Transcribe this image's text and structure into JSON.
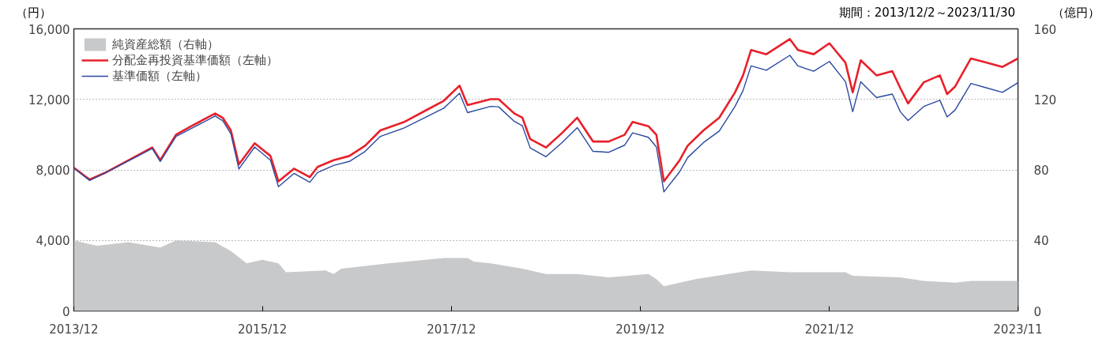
{
  "chart_data": {
    "type": "line",
    "ylabel": "（円）",
    "y2label": "（億円）",
    "annotations": [
      "期間：2013/12/2～2023/11/30"
    ],
    "xlim": [
      "2013-12-02",
      "2023-11-30"
    ],
    "xticks": [
      {
        "value": "2013-12-02",
        "label": "2013/12"
      },
      {
        "value": "2015-12-01",
        "label": "2015/12"
      },
      {
        "value": "2017-12-01",
        "label": "2017/12"
      },
      {
        "value": "2019-12-01",
        "label": "2019/12"
      },
      {
        "value": "2021-12-01",
        "label": "2021/12"
      },
      {
        "value": "2023-11-30",
        "label": "2023/11"
      }
    ],
    "ylim": [
      0,
      16000
    ],
    "yticks": [
      0,
      {
        "value": 4000,
        "label": "4,000"
      },
      {
        "value": 8000,
        "label": "8,000"
      },
      {
        "value": 12000,
        "label": "12,000"
      },
      {
        "value": 16000,
        "label": "16,000"
      }
    ],
    "y2lim": [
      0,
      160
    ],
    "y2ticks": [
      0,
      40,
      80,
      120,
      160
    ],
    "grid": "y",
    "legend": "top left",
    "series": [
      {
        "name": "純資産総額（右軸）",
        "type": "area",
        "axis": "y2",
        "color": "#c8c9cb",
        "x": [
          "2013-12-02",
          "2014-03",
          "2014-07",
          "2014-11",
          "2015-01",
          "2015-06",
          "2015-08",
          "2015-10",
          "2015-12",
          "2016-02",
          "2016-03",
          "2016-08",
          "2016-09",
          "2016-10",
          "2017-04",
          "2017-11",
          "2018-02-01",
          "2018-02-25",
          "2018-05",
          "2018-09",
          "2018-12",
          "2019-04",
          "2019-08",
          "2020-01",
          "2020-02",
          "2020-03",
          "2020-07",
          "2021-02",
          "2021-07",
          "2022-02",
          "2022-03",
          "2022-09",
          "2022-12",
          "2023-04",
          "2023-06",
          "2023-11-30"
        ],
        "values": [
          40,
          37,
          39,
          36,
          40,
          39,
          34,
          27,
          29,
          27,
          22,
          23,
          21,
          24,
          27,
          30,
          30,
          28,
          27,
          24,
          21,
          21,
          19,
          21,
          18,
          14,
          18,
          23,
          22,
          22,
          20,
          19,
          17,
          16,
          17,
          17
        ]
      },
      {
        "name": "分配金再投資基準価額（左軸）",
        "color": "#e8202a",
        "x": [
          "2013-12-02",
          "2014-02",
          "2014-04",
          "2014-06",
          "2014-08",
          "2014-10",
          "2014-11",
          "2015-01",
          "2015-03",
          "2015-06",
          "2015-07",
          "2015-08",
          "2015-09",
          "2015-11",
          "2016-01",
          "2016-02",
          "2016-04",
          "2016-06",
          "2016-07",
          "2016-09",
          "2016-11",
          "2017-01",
          "2017-03",
          "2017-06",
          "2017-09",
          "2017-11",
          "2018-01",
          "2018-02",
          "2018-05",
          "2018-06",
          "2018-08",
          "2018-09",
          "2018-10",
          "2018-12",
          "2019-02",
          "2019-04",
          "2019-06",
          "2019-08",
          "2019-10",
          "2019-11",
          "2020-01",
          "2020-02",
          "2020-03",
          "2020-05",
          "2020-06",
          "2020-08",
          "2020-10",
          "2020-12",
          "2021-01",
          "2021-02",
          "2021-04",
          "2021-07",
          "2021-08",
          "2021-10",
          "2021-12",
          "2022-02",
          "2022-03",
          "2022-04",
          "2022-06",
          "2022-08",
          "2022-09",
          "2022-10",
          "2022-12",
          "2023-02",
          "2023-03",
          "2023-04",
          "2023-06",
          "2023-08",
          "2023-10",
          "2023-11-30"
        ],
        "values": [
          8120,
          7450,
          7830,
          8310,
          8790,
          9270,
          8550,
          10000,
          10480,
          11200,
          10950,
          10240,
          8310,
          9510,
          8790,
          7350,
          8070,
          7590,
          8170,
          8550,
          8790,
          9370,
          10240,
          10720,
          11440,
          11920,
          12780,
          11680,
          12010,
          12010,
          11200,
          10960,
          9750,
          9270,
          10090,
          10960,
          9610,
          9610,
          9990,
          10720,
          10480,
          9990,
          7350,
          8550,
          9370,
          10240,
          10960,
          12400,
          13360,
          14800,
          14560,
          15420,
          14800,
          14560,
          15180,
          14080,
          12400,
          14220,
          13360,
          13600,
          12640,
          11770,
          12970,
          13360,
          12300,
          12730,
          14320,
          14080,
          13840,
          14320
        ]
      },
      {
        "name": "基準価額（左軸）",
        "color": "#2a4aa0",
        "x": [
          "2013-12-02",
          "2014-02",
          "2014-04",
          "2014-06",
          "2014-08",
          "2014-10",
          "2014-11",
          "2015-01",
          "2015-03",
          "2015-06",
          "2015-07",
          "2015-08",
          "2015-09",
          "2015-11",
          "2016-01",
          "2016-02",
          "2016-04",
          "2016-06",
          "2016-07",
          "2016-09",
          "2016-11",
          "2017-01",
          "2017-03",
          "2017-06",
          "2017-09",
          "2017-11",
          "2018-01",
          "2018-02",
          "2018-05",
          "2018-06",
          "2018-08",
          "2018-09",
          "2018-10",
          "2018-12",
          "2019-02",
          "2019-04",
          "2019-06",
          "2019-08",
          "2019-10",
          "2019-11",
          "2020-01",
          "2020-02",
          "2020-03",
          "2020-05",
          "2020-06",
          "2020-08",
          "2020-10",
          "2020-12",
          "2021-01",
          "2021-02",
          "2021-04",
          "2021-07",
          "2021-08",
          "2021-10",
          "2021-12",
          "2022-02",
          "2022-03",
          "2022-04",
          "2022-06",
          "2022-08",
          "2022-09",
          "2022-10",
          "2022-12",
          "2023-02",
          "2023-03",
          "2023-04",
          "2023-06",
          "2023-08",
          "2023-10",
          "2023-11-30"
        ],
        "values": [
          8100,
          7400,
          7830,
          8290,
          8750,
          9220,
          8480,
          9900,
          10350,
          11050,
          10780,
          10050,
          8050,
          9300,
          8550,
          7050,
          7800,
          7300,
          7850,
          8250,
          8480,
          9050,
          9900,
          10380,
          11050,
          11500,
          12350,
          11250,
          11600,
          11580,
          10750,
          10500,
          9250,
          8750,
          9550,
          10400,
          9050,
          9000,
          9400,
          10100,
          9850,
          9300,
          6750,
          7900,
          8700,
          9550,
          10200,
          11600,
          12500,
          13900,
          13650,
          14500,
          13900,
          13600,
          14150,
          13000,
          11300,
          13000,
          12100,
          12300,
          11300,
          10800,
          11600,
          11950,
          11000,
          11400,
          12900,
          12650,
          12400,
          12950
        ]
      }
    ]
  }
}
